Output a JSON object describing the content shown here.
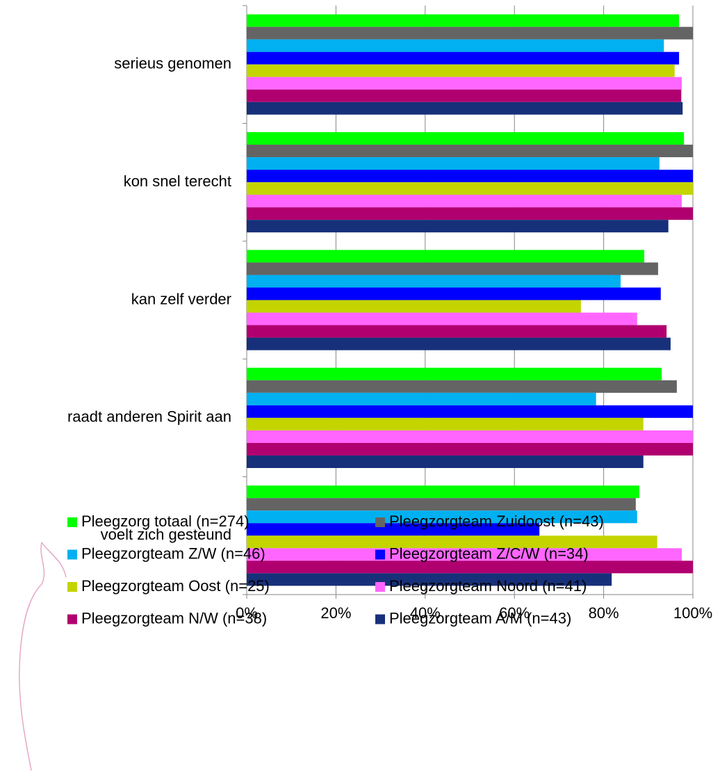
{
  "chart_data": {
    "type": "hbar",
    "categories": [
      "serieus genomen",
      "kon snel terecht",
      "kan zelf verder",
      "raadt anderen Spirit  aan",
      "voelt zich gesteund"
    ],
    "series": [
      {
        "name": "Pleegzorg totaal (n=274)",
        "color": "#00ff00",
        "values": [
          96.9,
          98,
          89.1,
          93,
          88
        ]
      },
      {
        "name": "Pleegzorgteam Zuidoost (n=43)",
        "color": "#646464",
        "values": [
          100,
          100,
          92.2,
          96.4,
          87.2
        ]
      },
      {
        "name": "Pleegzorgteam Z/W (n=46)",
        "color": "#00b0f0",
        "values": [
          93.5,
          92.5,
          83.8,
          78.3,
          87.5
        ]
      },
      {
        "name": "Pleegzorgteam Z/C/W (n=34)",
        "color": "#0000ff",
        "values": [
          96.9,
          100,
          92.8,
          100,
          65.6
        ]
      },
      {
        "name": "Pleegzorgteam Oost (n=25)",
        "color": "#c3d400",
        "values": [
          95.9,
          100,
          74.9,
          88.9,
          92
        ]
      },
      {
        "name": "Pleegzorgteam Noord (n=41)",
        "color": "#ff66ff",
        "values": [
          97.5,
          97.5,
          87.5,
          100,
          97.5
        ]
      },
      {
        "name": "Pleegzorgteam N/W (n=38)",
        "color": "#b0006f",
        "values": [
          97.4,
          100,
          94.1,
          100,
          100
        ]
      },
      {
        "name": "Pleegzorgteam A/M (n=43)",
        "color": "#17307a",
        "values": [
          97.7,
          94.5,
          95,
          88.9,
          81.8
        ]
      }
    ],
    "xlim": [
      0,
      100
    ],
    "xticks": [
      {
        "value": 0,
        "label": "0%"
      },
      {
        "value": 20,
        "label": "20%"
      },
      {
        "value": 40,
        "label": "40%"
      },
      {
        "value": 60,
        "label": "60%"
      },
      {
        "value": 80,
        "label": "80%"
      },
      {
        "value": 100,
        "label": "100%"
      }
    ],
    "grid": true
  }
}
